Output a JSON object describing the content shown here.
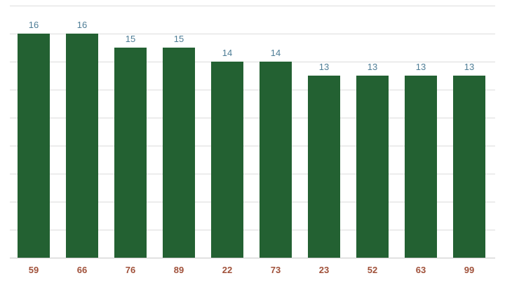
{
  "chart_data": {
    "type": "bar",
    "title": "",
    "xlabel": "",
    "ylabel": "",
    "categories": [
      "59",
      "66",
      "76",
      "89",
      "22",
      "73",
      "23",
      "52",
      "63",
      "99"
    ],
    "values": [
      16,
      16,
      15,
      15,
      14,
      14,
      13,
      13,
      13,
      13
    ],
    "ylim": [
      0,
      18
    ],
    "grid": true,
    "y_tick_labels_visible": false,
    "data_labels": true,
    "colors": {
      "bar": "#236132",
      "value_label": "#4e7d96",
      "category_label": "#a0513a",
      "grid": "#dcdcdc"
    }
  }
}
